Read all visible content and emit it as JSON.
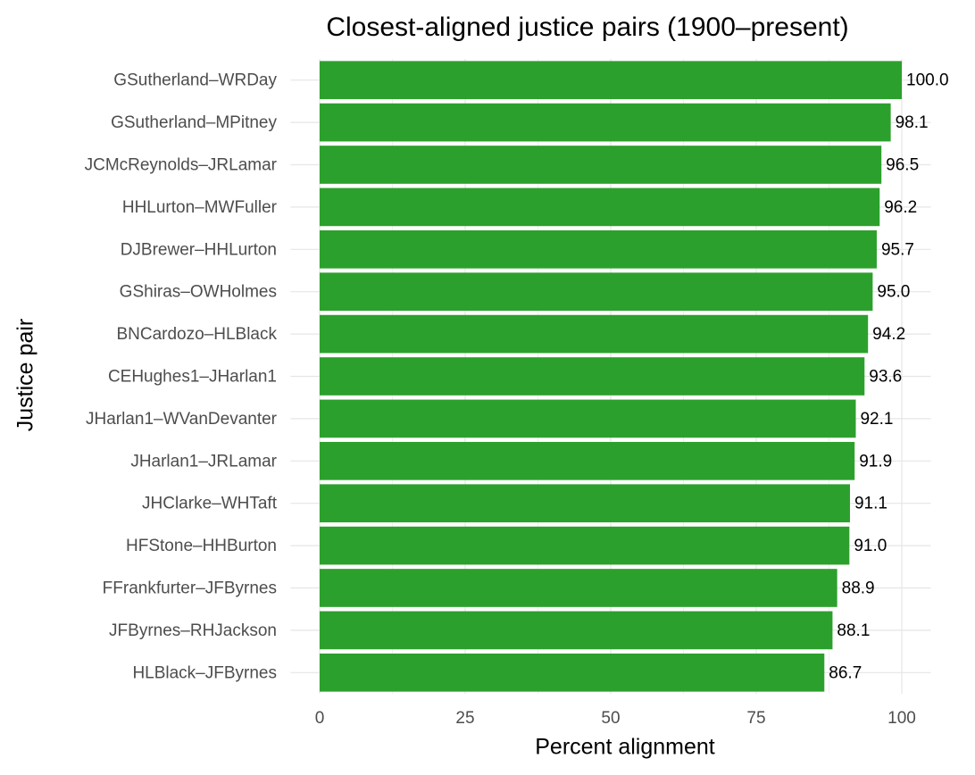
{
  "chart_data": {
    "type": "bar",
    "orientation": "horizontal",
    "title": "Closest-aligned justice pairs (1900–present)",
    "x_label": "Percent alignment",
    "y_label": "Justice pair",
    "categories": [
      "GSutherland–WRDay",
      "GSutherland–MPitney",
      "JCMcReynolds–JRLamar",
      "HHLurton–MWFuller",
      "DJBrewer–HHLurton",
      "GShiras–OWHolmes",
      "BNCardozo–HLBlack",
      "CEHughes1–JHarlan1",
      "JHarlan1–WVanDevanter",
      "JHarlan1–JRLamar",
      "JHClarke–WHTaft",
      "HFStone–HHBurton",
      "FFrankfurter–JFByrnes",
      "JFByrnes–RHJackson",
      "HLBlack–JFByrnes"
    ],
    "values": [
      100.0,
      98.1,
      96.5,
      96.2,
      95.7,
      95.0,
      94.2,
      93.6,
      92.1,
      91.9,
      91.1,
      91.0,
      88.9,
      88.1,
      86.7
    ],
    "value_labels": [
      "100.0",
      "98.1",
      "96.5",
      "96.2",
      "95.7",
      "95.0",
      "94.2",
      "93.6",
      "92.1",
      "91.9",
      "91.1",
      "91.0",
      "88.9",
      "88.1",
      "86.7"
    ],
    "color": "#2ca02c",
    "xlim": [
      -5,
      105
    ],
    "xticks": [
      0,
      25,
      50,
      75,
      100
    ],
    "minor_xticks": [
      12.5,
      37.5,
      62.5,
      87.5
    ],
    "grid": true
  }
}
